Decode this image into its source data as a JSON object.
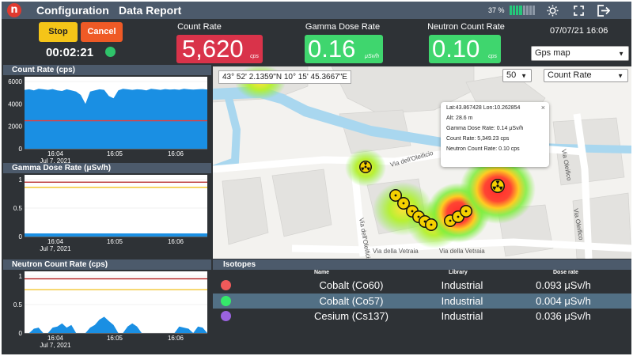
{
  "topbar": {
    "menu_config": "Configuration",
    "menu_report": "Data Report",
    "battery_pct": "37 %"
  },
  "controls": {
    "stop_label": "Stop",
    "cancel_label": "Cancel",
    "timer": "00:02:21"
  },
  "metrics": [
    {
      "label": "Count Rate",
      "value": "5,620",
      "unit": "cps",
      "color": "#d9334a"
    },
    {
      "label": "Gamma Dose Rate",
      "value": "0.16",
      "unit": "μSv/h",
      "color": "#3fd66e"
    },
    {
      "label": "Neutron Count Rate",
      "value": "0.10",
      "unit": "cps",
      "color": "#3fd66e"
    }
  ],
  "datetime": "07/07/21 16:06",
  "map_select": "Gps map",
  "map": {
    "coords": "43° 52' 2.1359\"N 10° 15' 45.3667\"E",
    "zoom_select": "50",
    "layer_select": "Count Rate",
    "streets": [
      "Via dell'Oleificio",
      "Via dell'Oleificio",
      "Via della Vetraia",
      "Via della Vetraia",
      "Via Oleifico",
      "Via Oleifico"
    ],
    "popup": {
      "latlon": "Lat:43.867428 Lon:10.262854",
      "alt": "Alt: 28.6 m",
      "gamma": "Gamma Dose Rate: 0.14 μSv/h",
      "count": "Count Rate: 5,349.23 cps",
      "neutron": "Neutron Count Rate: 0.10 cps",
      "close": "×"
    }
  },
  "charts": {
    "count_rate": {
      "title": "Count Rate (cps)",
      "yticks": [
        "6000",
        "4000",
        "2000",
        "0"
      ],
      "xticks": [
        "16:04",
        "16:05",
        "16:06"
      ],
      "date": "Jul 7, 2021",
      "ylim": [
        0,
        6000
      ],
      "threshold_value": 2500,
      "fill_color": "#1a8fe3",
      "threshold_color": "#e04040"
    },
    "gamma": {
      "title": "Gamma Dose Rate (μSv/h)",
      "yticks": [
        "1",
        "0.5",
        "0"
      ],
      "xticks": [
        "16:04",
        "16:05",
        "16:06"
      ],
      "date": "Jul 7, 2021",
      "ylim": [
        0,
        1.1
      ],
      "red_threshold": 1.05,
      "yellow_threshold": 0.95,
      "fill_level": 0.06,
      "fill_color": "#1a8fe3"
    },
    "neutron": {
      "title": "Neutron Count Rate (cps)",
      "yticks": [
        "1",
        "0.5",
        "0"
      ],
      "xticks": [
        "16:04",
        "16:05",
        "16:06"
      ],
      "date": "Jul 7, 2021",
      "ylim": [
        0,
        1.05
      ],
      "red_threshold": 1.0,
      "yellow_threshold": 0.8,
      "fill_color": "#1a8fe3"
    }
  },
  "isotopes": {
    "title": "Isotopes",
    "col_name": "Name",
    "col_library": "Library",
    "col_dose": "Dose rate",
    "rows": [
      {
        "name": "Cobalt (Co60)",
        "library": "Industrial",
        "dose": "0.093 μSv/h",
        "color": "#f05a5a"
      },
      {
        "name": "Cobalt (Co57)",
        "library": "Industrial",
        "dose": "0.004 μSv/h",
        "color": "#35e86a"
      },
      {
        "name": "Cesium (Cs137)",
        "library": "Industrial",
        "dose": "0.036 μSv/h",
        "color": "#9b63e0"
      }
    ]
  }
}
